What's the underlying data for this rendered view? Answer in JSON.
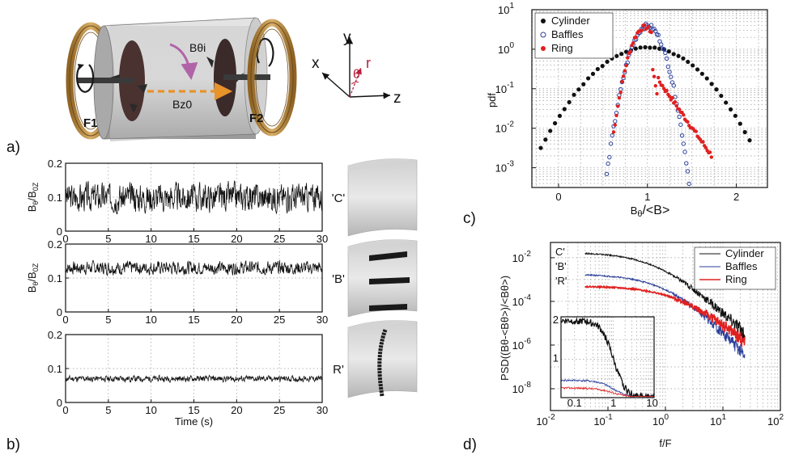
{
  "figure": {
    "panel_labels": [
      "a)",
      "b)",
      "c)",
      "d)"
    ],
    "colors": {
      "cylinder": "#111111",
      "baffles": "#2b3f9a",
      "ring": "#e02020",
      "copper": "#b8893e",
      "tube": "#b4b4b4",
      "arrow_orange": "#e8922a",
      "arrow_purple": "#b064a8",
      "axis_red": "#b81e3c"
    }
  },
  "panel_a": {
    "labels": {
      "btheta": "Bθi",
      "bz": "Bz0",
      "f1": "F1",
      "f2": "F2"
    },
    "axes": {
      "x": "x",
      "y": "y",
      "z": "z",
      "theta": "θ",
      "r": "r"
    }
  },
  "panel_b": {
    "ylabel": "B",
    "ylabel_sub1": "θ",
    "ylabel_mid": "/B",
    "ylabel_sub2": "0Z",
    "xlabel": "Time (s)",
    "traces": [
      {
        "name": "'C'",
        "mean": 0.1,
        "amp": 0.028,
        "seed": 3
      },
      {
        "name": "'B'",
        "mean": 0.13,
        "amp": 0.013,
        "seed": 7
      },
      {
        "name": "R'",
        "mean": 0.07,
        "amp": 0.006,
        "seed": 11
      }
    ],
    "x_ticks": [
      "0",
      "5",
      "10",
      "15",
      "20",
      "25",
      "30"
    ],
    "y_ticks": [
      "0",
      "0.1",
      "0.2"
    ],
    "xlim": [
      0,
      30
    ],
    "ylim": [
      0,
      0.2
    ]
  },
  "chart_data": [
    {
      "type": "scatter",
      "panel": "c",
      "xlabel": "B",
      "xlabel_sub": "θ",
      "xlabel_mid": "/<B",
      "xlabel_end": ">",
      "ylabel": "pdf",
      "xlim": [
        -0.3,
        2.35
      ],
      "ylim_log10": [
        -3.5,
        1
      ],
      "x_tick_labels": [
        "0",
        "1",
        "2"
      ],
      "x_ticks": [
        0,
        1,
        2
      ],
      "y_tick_exps": [
        -3,
        -2,
        -1,
        0,
        1
      ],
      "y_tick_base": "10",
      "log_y": true,
      "grid": true,
      "legend_position": "top-left",
      "series": [
        {
          "name": "Cylinder",
          "marker": "filled",
          "mean": 1.0,
          "sigma": 0.35,
          "peak": 1.1,
          "x_range": [
            -0.2,
            2.15
          ]
        },
        {
          "name": "Baffles",
          "marker": "open",
          "mean": 1.0,
          "sigma": 0.11,
          "peak": 3.9,
          "x_range": [
            0.4,
            1.5
          ]
        },
        {
          "name": "Ring",
          "marker": "filled",
          "mean": 0.97,
          "sigma": 0.1,
          "peak": 3.6,
          "x_range": [
            0.62,
            1.72
          ]
        }
      ]
    },
    {
      "type": "line",
      "panel": "d",
      "xlabel": "f/F",
      "ylabel": "PSD((Bθ-<Bθ>)/<Bθ>)",
      "log_x": true,
      "log_y": true,
      "xlim_log10": [
        -2,
        2
      ],
      "ylim_log10": [
        -9,
        -1.3
      ],
      "x_tick_exps": [
        -2,
        -1,
        0,
        1,
        2
      ],
      "y_tick_exps": [
        -8,
        -6,
        -4,
        -2
      ],
      "tick_base": "10",
      "grid": true,
      "legend_position": "top-right",
      "curve_labels": [
        "C'",
        "'B'",
        "'R'"
      ],
      "series": [
        {
          "name": "Cylinder",
          "plateau_log10": -1.75,
          "knee_log10": -0.1,
          "slope": -2.6
        },
        {
          "name": "Baffles",
          "plateau_log10": -2.75,
          "knee_log10": 0.1,
          "slope": -3.0
        },
        {
          "name": "Ring",
          "plateau_log10": -3.3,
          "knee_log10": 0.25,
          "slope": -2.3
        }
      ],
      "inset": {
        "x_ticks": [
          "0.1",
          "1",
          "10"
        ],
        "y_ticks": [
          "1",
          "2"
        ],
        "xlim_log10": [
          -1.35,
          1.05
        ],
        "ylim": [
          0,
          2.1
        ]
      }
    }
  ]
}
